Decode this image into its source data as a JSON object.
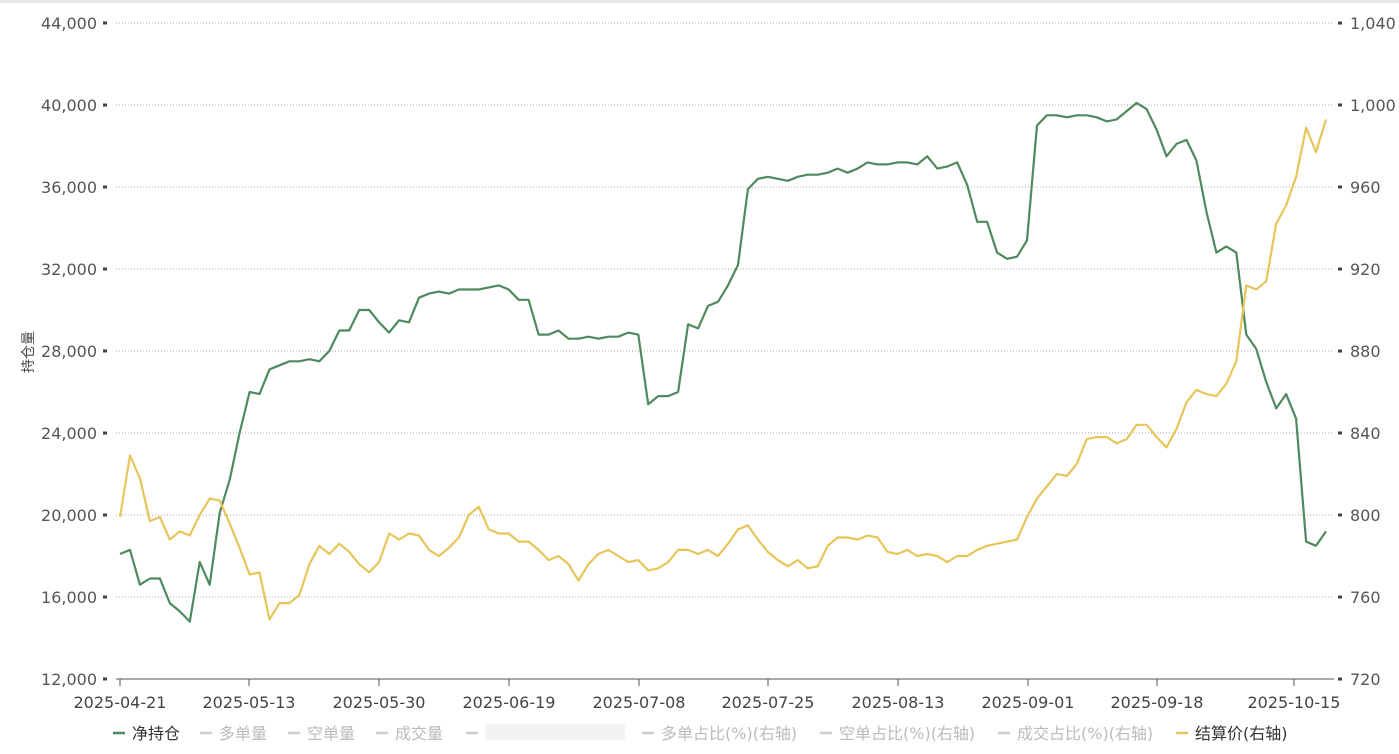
{
  "chart_data": {
    "type": "line",
    "ylabel": "持仓量",
    "ylim": [
      12000,
      44000
    ],
    "y2lim": [
      720,
      1040
    ],
    "y_ticks": [
      "12,000",
      "16,000",
      "20,000",
      "24,000",
      "28,000",
      "32,000",
      "36,000",
      "40,000",
      "44,000"
    ],
    "y2_ticks": [
      "720",
      "760",
      "800",
      "840",
      "880",
      "920",
      "960",
      "1,000",
      "1,040"
    ],
    "x_tick_labels": [
      "2025-04-21",
      "2025-05-13",
      "2025-05-30",
      "2025-06-19",
      "2025-07-08",
      "2025-07-25",
      "2025-08-13",
      "2025-09-01",
      "2025-09-18",
      "2025-10-15"
    ],
    "grid": true,
    "legend_position": "bottom",
    "legend": [
      {
        "name": "净持仓",
        "color": "#4e8a5e",
        "active": true
      },
      {
        "name": "多单量",
        "color": "#cccccc",
        "active": false
      },
      {
        "name": "空单量",
        "color": "#cccccc",
        "active": false
      },
      {
        "name": "成交量",
        "color": "#cccccc",
        "active": false
      },
      {
        "name": "",
        "color": "#cccccc",
        "active": false
      },
      {
        "name": "多单占比(%)(右轴)",
        "color": "#cccccc",
        "active": false
      },
      {
        "name": "空单占比(%)(右轴)",
        "color": "#cccccc",
        "active": false
      },
      {
        "name": "成交占比(%)(右轴)",
        "color": "#cccccc",
        "active": false
      },
      {
        "name": "结算价(右轴)",
        "color": "#e8c55a",
        "active": true
      }
    ],
    "series": [
      {
        "name": "净持仓",
        "axis": "left",
        "color": "#4e8a5e",
        "values": [
          18100,
          18300,
          16600,
          16900,
          16900,
          15700,
          15300,
          14800,
          17700,
          16600,
          20100,
          21700,
          24000,
          26000,
          25900,
          27100,
          27300,
          27500,
          27500,
          27600,
          27500,
          28000,
          29000,
          29000,
          30000,
          30000,
          29400,
          28900,
          29500,
          29400,
          30600,
          30800,
          30900,
          30800,
          31000,
          31000,
          31000,
          31100,
          31200,
          31000,
          30500,
          30500,
          28800,
          28800,
          29000,
          28600,
          28600,
          28700,
          28600,
          28700,
          28700,
          28900,
          28800,
          25400,
          25800,
          25800,
          26000,
          29300,
          29100,
          30200,
          30400,
          31200,
          32200,
          35900,
          36400,
          36500,
          36400,
          36300,
          36500,
          36600,
          36600,
          36700,
          36900,
          36700,
          36900,
          37200,
          37100,
          37100,
          37200,
          37200,
          37100,
          37500,
          36900,
          37000,
          37200,
          36100,
          34300,
          34300,
          32800,
          32500,
          32600,
          33400,
          39000,
          39500,
          39500,
          39400,
          39500,
          39500,
          39400,
          39200,
          39300,
          39700,
          40100,
          39800,
          38800,
          37500,
          38100,
          38300,
          37300,
          34800,
          32800,
          33100,
          32800,
          28800,
          28100,
          26500,
          25200,
          25900,
          24700,
          18700,
          18500,
          19200
        ]
      },
      {
        "name": "结算价(右轴)",
        "axis": "right",
        "color": "#e8c55a",
        "values": [
          799,
          829,
          818,
          797,
          799,
          788,
          792,
          790,
          800,
          808,
          807,
          796,
          784,
          771,
          772,
          749,
          757,
          757,
          761,
          776,
          785,
          781,
          786,
          782,
          776,
          772,
          777,
          791,
          788,
          791,
          790,
          783,
          780,
          784,
          789,
          800,
          804,
          793,
          791,
          791,
          787,
          787,
          783,
          778,
          780,
          776,
          768,
          776,
          781,
          783,
          780,
          777,
          778,
          773,
          774,
          777,
          783,
          783,
          781,
          783,
          780,
          786,
          793,
          795,
          788,
          782,
          778,
          775,
          778,
          774,
          775,
          785,
          789,
          789,
          788,
          790,
          789,
          782,
          781,
          783,
          780,
          781,
          780,
          777,
          780,
          780,
          783,
          785,
          786,
          787,
          788,
          799,
          808,
          814,
          820,
          819,
          825,
          837,
          838,
          838,
          835,
          837,
          844,
          844,
          838,
          833,
          842,
          855,
          861,
          859,
          858,
          864,
          875,
          912,
          910,
          914,
          942,
          951,
          965,
          989,
          977,
          993
        ]
      }
    ]
  }
}
